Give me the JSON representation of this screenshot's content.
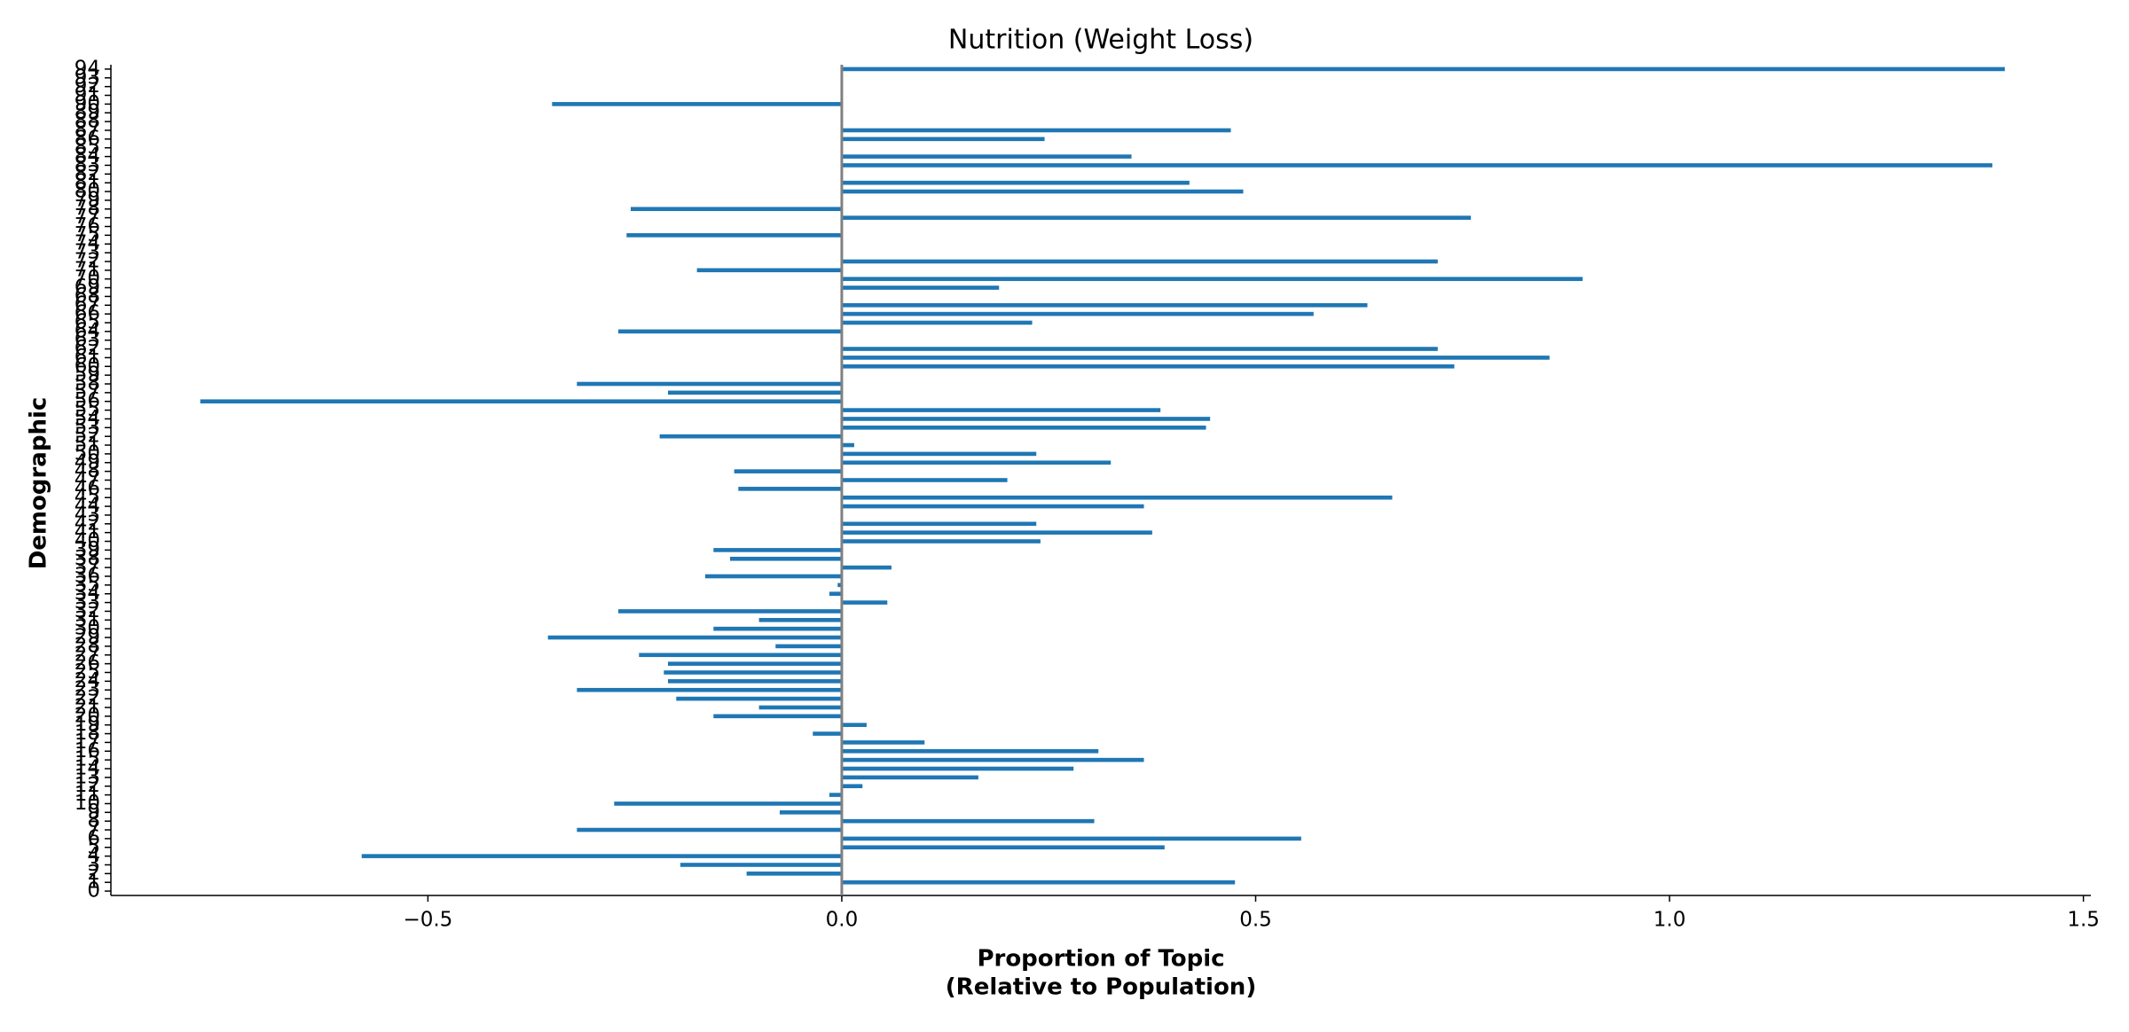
{
  "chart_data": {
    "type": "barh",
    "title": "Nutrition (Weight Loss)",
    "xlabel": [
      "Proportion of Topic",
      "(Relative to Population)"
    ],
    "ylabel": "Demographic",
    "color": "#1f77b4",
    "zero_line_color": "#808080",
    "categories": [
      "0",
      "1",
      "2",
      "3",
      "4",
      "5",
      "6",
      "7",
      "8",
      "9",
      "10",
      "11",
      "12",
      "13",
      "14",
      "15",
      "16",
      "17",
      "18",
      "19",
      "20",
      "21",
      "22",
      "23",
      "24",
      "25",
      "26",
      "27",
      "28",
      "29",
      "30",
      "31",
      "32",
      "33",
      "34",
      "35",
      "36",
      "37",
      "38",
      "39",
      "40",
      "41",
      "42",
      "43",
      "44",
      "45",
      "46",
      "47",
      "48",
      "49",
      "50",
      "51",
      "52",
      "53",
      "54",
      "55",
      "56",
      "57",
      "58",
      "59",
      "60",
      "61",
      "62",
      "63",
      "64",
      "65",
      "66",
      "67",
      "68",
      "69",
      "70",
      "71",
      "72",
      "73",
      "74",
      "75",
      "76",
      "77",
      "78",
      "79",
      "80",
      "81",
      "82",
      "83",
      "84",
      "85",
      "86",
      "87",
      "88",
      "89",
      "90",
      "91",
      "92",
      "93",
      "94"
    ],
    "values": [
      0,
      0.475,
      -0.115,
      -0.195,
      -0.58,
      0.39,
      0.555,
      -0.32,
      0.305,
      -0.075,
      -0.275,
      -0.015,
      0.025,
      0.165,
      0.28,
      0.365,
      0.31,
      0.1,
      -0.035,
      0.03,
      -0.155,
      -0.1,
      -0.2,
      -0.32,
      -0.21,
      -0.215,
      -0.21,
      -0.245,
      -0.08,
      -0.355,
      -0.155,
      -0.1,
      -0.27,
      0.055,
      -0.015,
      -0.005,
      -0.165,
      0.06,
      -0.135,
      -0.155,
      0.24,
      0.375,
      0.235,
      0,
      0.365,
      0.665,
      -0.125,
      0.2,
      -0.13,
      0.325,
      0.235,
      0.015,
      -0.22,
      0.44,
      0.445,
      0.385,
      -0.775,
      -0.21,
      -0.32,
      0,
      0.74,
      0.855,
      0.72,
      0,
      -0.27,
      0.23,
      0.57,
      0.635,
      0,
      0.19,
      0.895,
      -0.175,
      0.72,
      0,
      0,
      -0.26,
      0,
      0.76,
      -0.255,
      0,
      0.485,
      0.42,
      0,
      1.39,
      0.35,
      0,
      0.245,
      0.47,
      0,
      0,
      -0.35,
      0,
      0,
      0,
      1.405
    ],
    "xlim": [
      -0.883,
      1.509
    ],
    "xticks": [
      {
        "value": -0.5,
        "label": "−0.5"
      },
      {
        "value": 0,
        "label": "0.0"
      },
      {
        "value": 0.5,
        "label": "0.5"
      },
      {
        "value": 1,
        "label": "1.0"
      },
      {
        "value": 1.5,
        "label": "1.5"
      }
    ],
    "ylim": [
      -0.5,
      94.5
    ],
    "grid": false
  }
}
